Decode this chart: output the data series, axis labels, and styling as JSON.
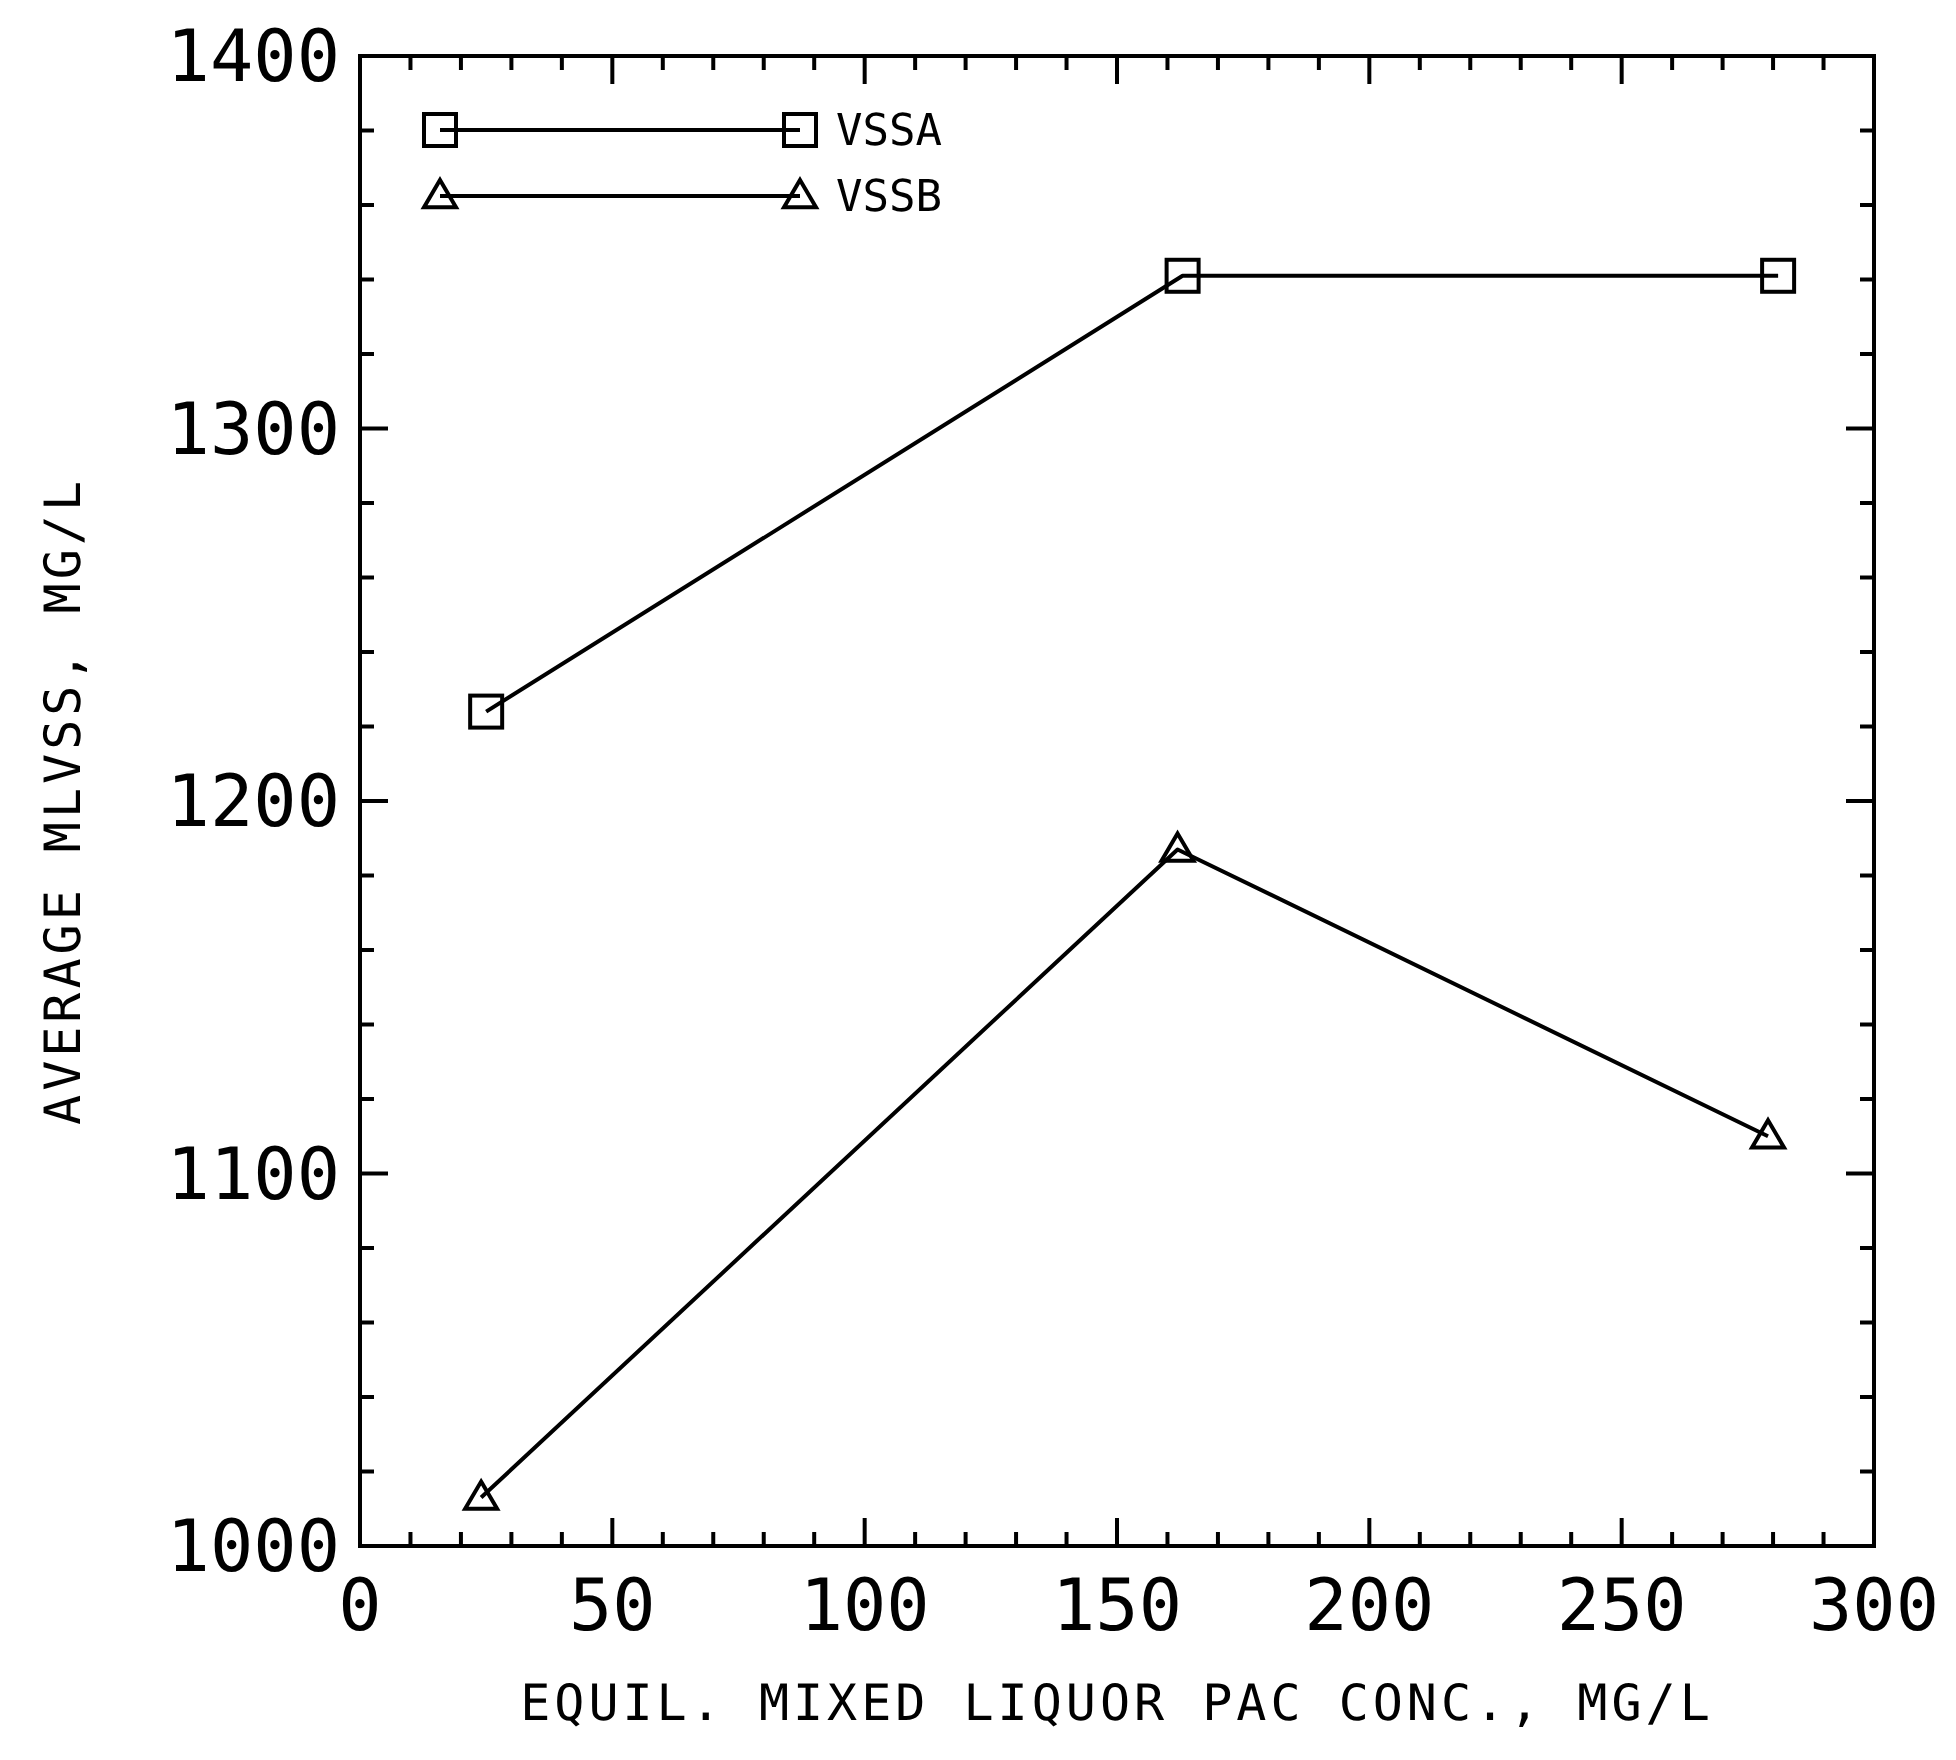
{
  "chart_data": {
    "type": "line",
    "xlabel": "EQUIL. MIXED LIQUOR PAC CONC., MG/L",
    "ylabel": "AVERAGE MLVSS, MG/L",
    "xlim": [
      0,
      300
    ],
    "xticks": [
      0,
      50,
      100,
      150,
      200,
      250,
      300
    ],
    "ylim": [
      1000,
      1400
    ],
    "yticks": [
      1000,
      1100,
      1200,
      1300,
      1400
    ],
    "legend": "top left",
    "grid": false,
    "line_style": "solid",
    "series": [
      {
        "name": "VSSA",
        "color": "#000000",
        "marker": "square",
        "x": [
          25,
          163,
          281
        ],
        "values": [
          1224,
          1341,
          1341
        ]
      },
      {
        "name": "VSSB",
        "color": "#000000",
        "marker": "triangle",
        "x": [
          24,
          162,
          279
        ],
        "values": [
          1013,
          1187,
          1110
        ]
      }
    ]
  }
}
